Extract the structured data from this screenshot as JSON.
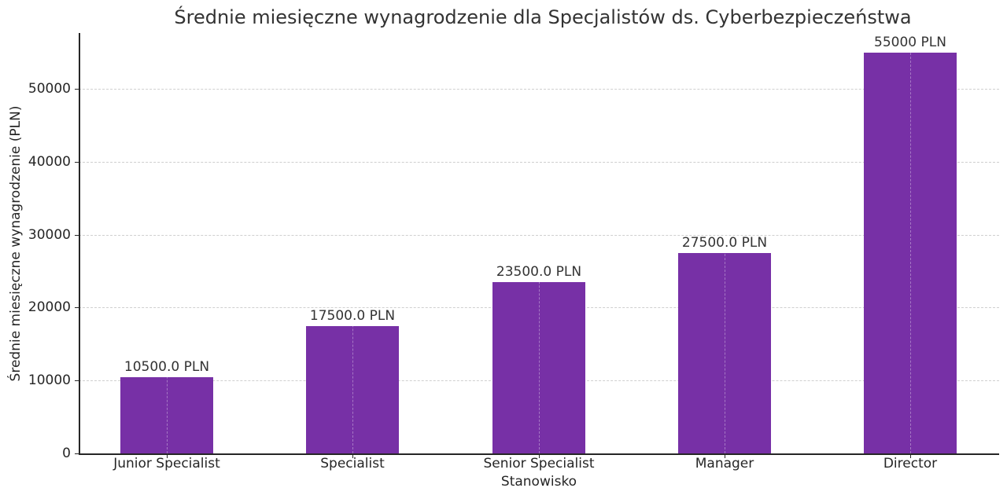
{
  "chart_data": {
    "type": "bar",
    "title": "Średnie miesięczne wynagrodzenie dla Specjalistów ds. Cyberbezpieczeństwa",
    "xlabel": "Stanowisko",
    "ylabel": "Średnie miesięczne wynagrodzenie (PLN)",
    "categories": [
      "Junior Specialist",
      "Specialist",
      "Senior Specialist",
      "Manager",
      "Director"
    ],
    "values": [
      10500,
      17500,
      23500,
      27500,
      55000
    ],
    "data_labels": [
      "10500.0 PLN",
      "17500.0 PLN",
      "23500.0 PLN",
      "27500.0 PLN",
      "55000 PLN"
    ],
    "ylim": [
      0,
      57800
    ],
    "yticks": [
      "0",
      "10000",
      "20000",
      "30000",
      "40000",
      "50000"
    ],
    "grid": true,
    "legend": null,
    "bar_color": "#7730a6"
  }
}
